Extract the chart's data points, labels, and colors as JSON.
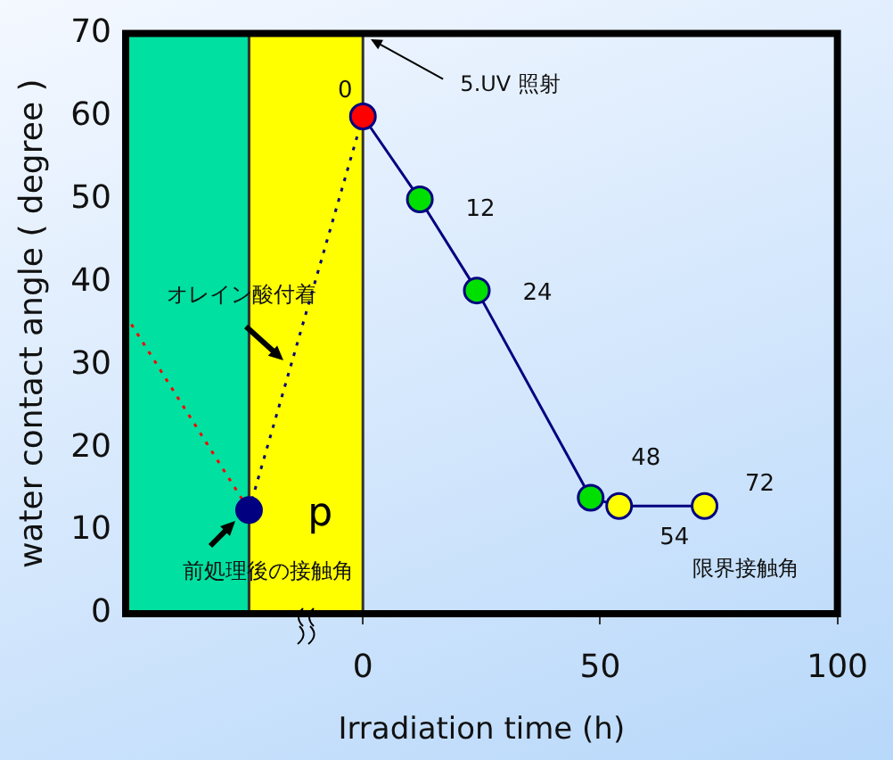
{
  "chart_data": {
    "type": "line",
    "xlabel": "Irradiation time (h)",
    "ylabel": "water contact angle ( degree )",
    "xlim": [
      -50,
      100
    ],
    "xticks": [
      0,
      50,
      100
    ],
    "ylim": [
      0,
      70
    ],
    "yticks": [
      0,
      10,
      20,
      30,
      40,
      50,
      60,
      70
    ],
    "grid": false,
    "legend": false,
    "series": [
      {
        "x": [
          -50,
          -24
        ],
        "values": [
          36,
          12.5
        ],
        "color": "#ff0000",
        "line_style": "dotted"
      },
      {
        "x": [
          -24,
          0
        ],
        "values": [
          12.5,
          60
        ],
        "color": "#000080",
        "line_style": "dotted"
      },
      {
        "x": [
          0,
          12,
          24,
          48,
          54,
          72
        ],
        "values": [
          60,
          50,
          39,
          14,
          13,
          13
        ],
        "color": "#000080",
        "colors": [
          "#ff0000",
          "#00e000",
          "#00e000",
          "#00e000",
          "#ffff00",
          "#ffff00"
        ],
        "line_style": "solid",
        "marker": "circle"
      },
      {
        "type": "scatter",
        "x": [
          -24
        ],
        "values": [
          12.5
        ],
        "color": "#000080",
        "marker": "circle"
      }
    ],
    "bands": [
      {
        "axis": "x",
        "from": -50,
        "to": -24,
        "color": "#00e0a0"
      },
      {
        "axis": "x",
        "from": -24,
        "to": 0,
        "color": "#ffff00",
        "label": "p"
      }
    ],
    "annotations": [
      {
        "text": "0",
        "x": 0,
        "y": 60
      },
      {
        "text": "12",
        "x": 12,
        "y": 50
      },
      {
        "text": "24",
        "x": 24,
        "y": 39
      },
      {
        "text": "48",
        "x": 48,
        "y": 14
      },
      {
        "text": "54",
        "x": 54,
        "y": 13
      },
      {
        "text": "72",
        "x": 72,
        "y": 13
      },
      "5.UV 照射",
      {
        "text": "オレイン酸付着",
        "x": -12,
        "y": 36
      },
      {
        "text": "前処理後の接触角",
        "x": -24,
        "y": 12.5
      },
      {
        "text": "限界接触角",
        "x": 72,
        "y": 13
      }
    ]
  }
}
